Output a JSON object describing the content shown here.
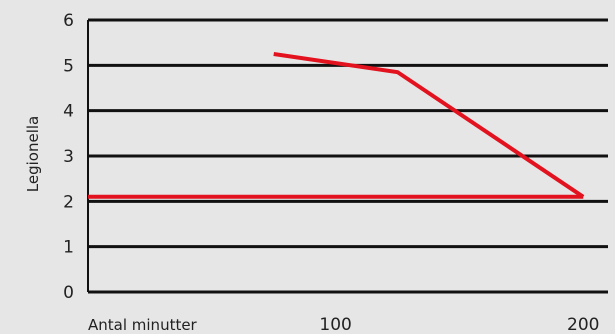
{
  "colors": {
    "background": "#e6e6e6",
    "grid": "#111111",
    "series": "#e3121f"
  },
  "chart_data": {
    "type": "line",
    "xlabel": "Antal minutter",
    "ylabel": "Legionella",
    "xlim": [
      0,
      210
    ],
    "ylim": [
      0,
      6
    ],
    "x_ticks": [
      100,
      200
    ],
    "y_ticks": [
      0,
      1,
      2,
      3,
      4,
      5,
      6
    ],
    "grid": true,
    "series": [
      {
        "points": [
          [
            0,
            2.1
          ],
          [
            200,
            2.1
          ]
        ]
      },
      {
        "points": [
          [
            75,
            5.25
          ],
          [
            125,
            4.85
          ],
          [
            200,
            2.1
          ]
        ]
      }
    ]
  }
}
